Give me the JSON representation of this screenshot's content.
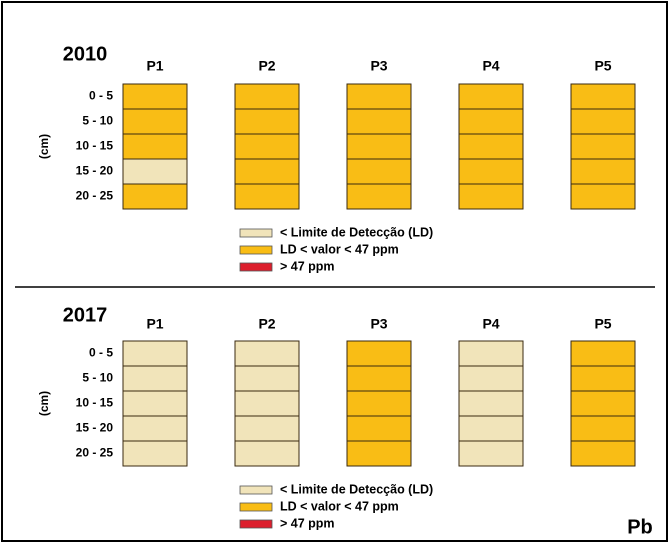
{
  "element": "Pb",
  "unit": "(cm)",
  "depths": [
    "0 - 5",
    "5 - 10",
    "10 - 15",
    "15 - 20",
    "20 - 25"
  ],
  "legend": [
    {
      "label": "< Limite de Detecção (LD)",
      "color": "#f1e4ba"
    },
    {
      "label": "LD < valor < 47 ppm",
      "color": "#f9bd15"
    },
    {
      "label": "> 47 ppm",
      "color": "#dc1f2d"
    }
  ],
  "panels": [
    {
      "year": "2010",
      "points": [
        {
          "name": "P1",
          "cells": [
            "#f9bd15",
            "#f9bd15",
            "#f9bd15",
            "#f1e4ba",
            "#f9bd15"
          ]
        },
        {
          "name": "P2",
          "cells": [
            "#f9bd15",
            "#f9bd15",
            "#f9bd15",
            "#f9bd15",
            "#f9bd15"
          ]
        },
        {
          "name": "P3",
          "cells": [
            "#f9bd15",
            "#f9bd15",
            "#f9bd15",
            "#f9bd15",
            "#f9bd15"
          ]
        },
        {
          "name": "P4",
          "cells": [
            "#f9bd15",
            "#f9bd15",
            "#f9bd15",
            "#f9bd15",
            "#f9bd15"
          ]
        },
        {
          "name": "P5",
          "cells": [
            "#f9bd15",
            "#f9bd15",
            "#f9bd15",
            "#f9bd15",
            "#f9bd15"
          ]
        }
      ]
    },
    {
      "year": "2017",
      "points": [
        {
          "name": "P1",
          "cells": [
            "#f1e4ba",
            "#f1e4ba",
            "#f1e4ba",
            "#f1e4ba",
            "#f1e4ba"
          ]
        },
        {
          "name": "P2",
          "cells": [
            "#f1e4ba",
            "#f1e4ba",
            "#f1e4ba",
            "#f1e4ba",
            "#f1e4ba"
          ]
        },
        {
          "name": "P3",
          "cells": [
            "#f9bd15",
            "#f9bd15",
            "#f9bd15",
            "#f9bd15",
            "#f9bd15"
          ]
        },
        {
          "name": "P4",
          "cells": [
            "#f1e4ba",
            "#f1e4ba",
            "#f1e4ba",
            "#f1e4ba",
            "#f1e4ba"
          ]
        },
        {
          "name": "P5",
          "cells": [
            "#f9bd15",
            "#f9bd15",
            "#f9bd15",
            "#f9bd15",
            "#f9bd15"
          ]
        }
      ]
    }
  ]
}
